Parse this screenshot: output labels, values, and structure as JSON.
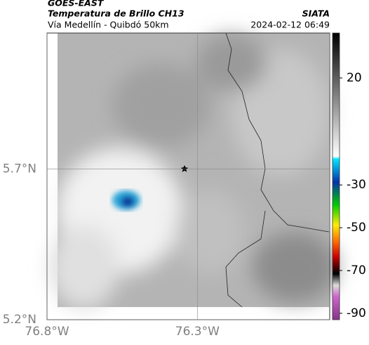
{
  "header": {
    "source": "GOES-EAST",
    "product": "Temperatura de Brillo CH13",
    "route": "Vía Medellín - Quibdó 50km",
    "agency": "SIATA",
    "datetime": "2024-02-12 06:49"
  },
  "map": {
    "xlim": [
      -76.8,
      -75.86
    ],
    "ylim": [
      5.2,
      6.15
    ],
    "xticks": [
      {
        "value": -76.8,
        "label": "76.8°W"
      },
      {
        "value": -76.3,
        "label": "76.3°W"
      }
    ],
    "yticks": [
      {
        "value": 5.7,
        "label": "5.7°N"
      },
      {
        "value": 5.2,
        "label": "5.2°N"
      }
    ]
  },
  "colorbar": {
    "lim": [
      -93,
      41
    ],
    "ticks": [
      20,
      -30,
      -50,
      -70,
      -90
    ]
  }
}
